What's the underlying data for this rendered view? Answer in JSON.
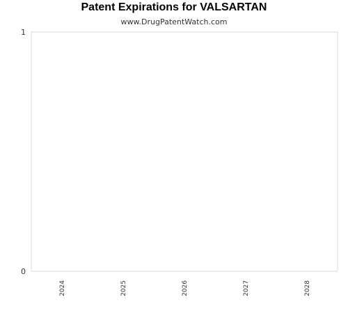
{
  "chart_data": {
    "type": "bar",
    "title": "Patent Expirations for VALSARTAN",
    "subtitle": "www.DrugPatentWatch.com",
    "xlabel": "",
    "ylabel": "",
    "categories": [
      "2024",
      "2025",
      "2026",
      "2027",
      "2028"
    ],
    "values": [
      0,
      0,
      0,
      0,
      0
    ],
    "ylim": [
      0,
      1
    ],
    "y_ticks": [
      "0",
      "1"
    ],
    "grid": false,
    "legend": "none",
    "colors": {
      "plot_border": "#dddddd",
      "text": "#333333",
      "title": "#000000"
    }
  }
}
